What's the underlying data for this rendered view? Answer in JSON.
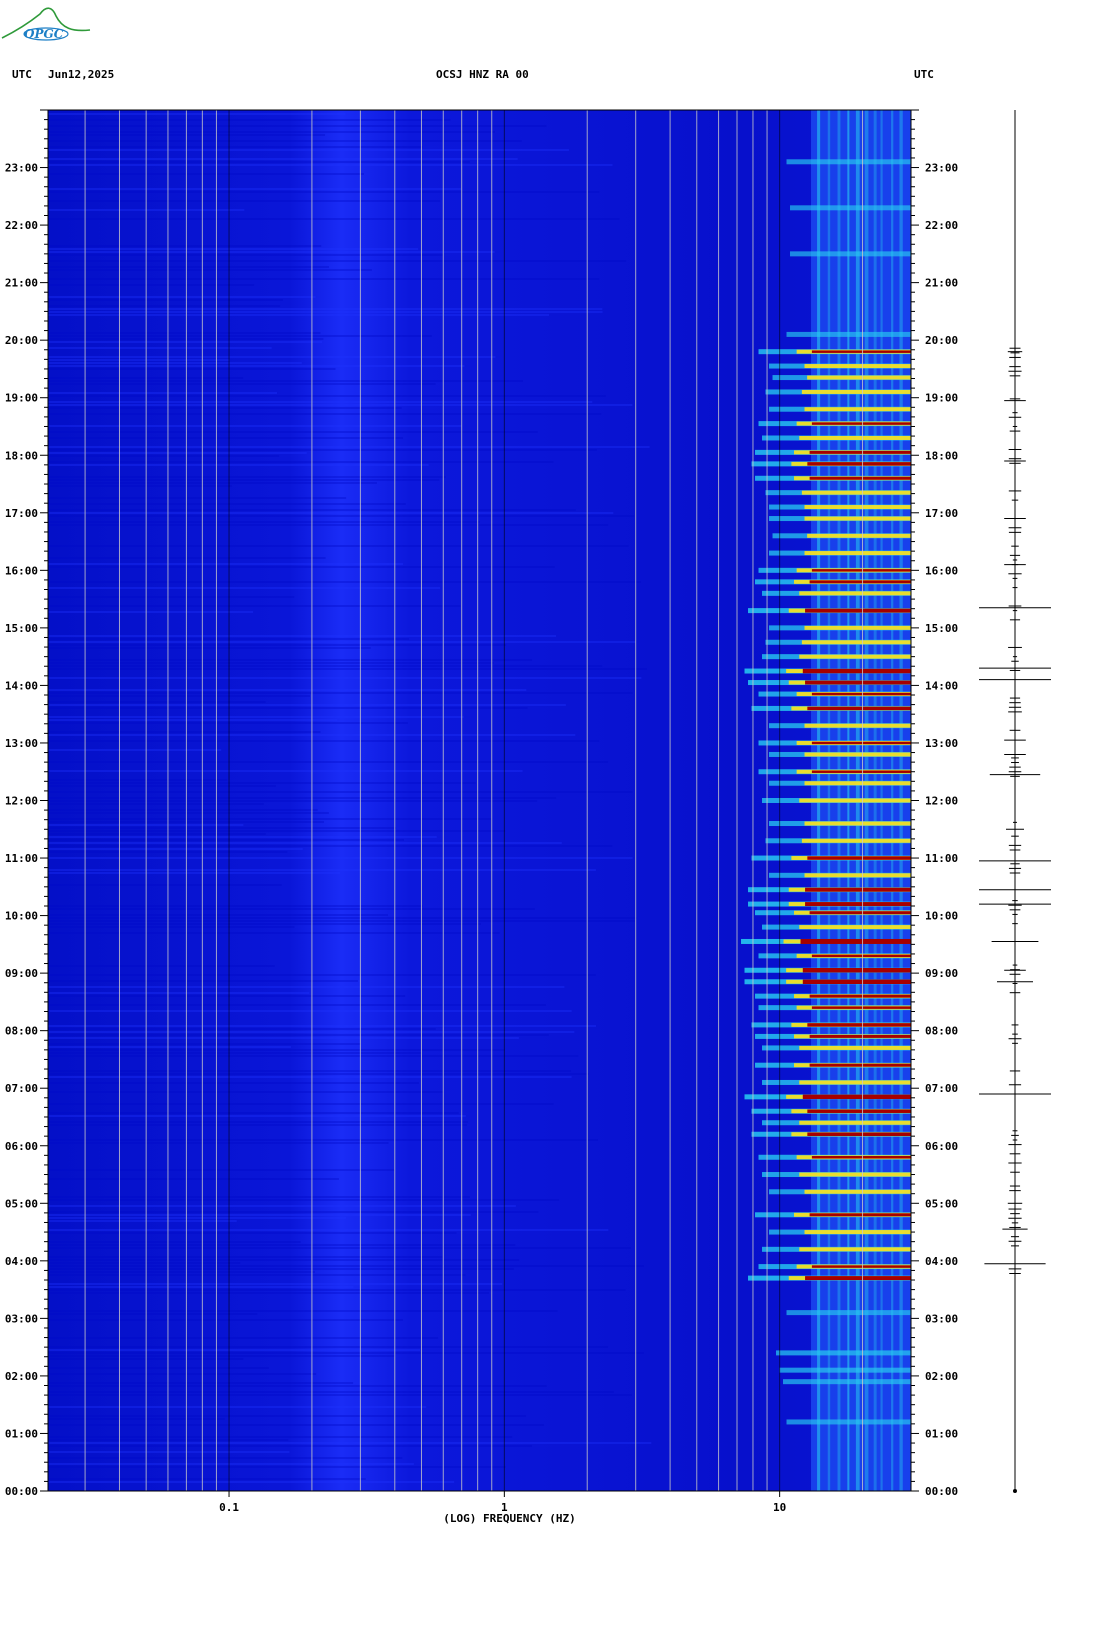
{
  "header": {
    "left_utc": "UTC",
    "date": "Jun12,2025",
    "station": "OCSJ HNZ RA 00",
    "right_utc": "UTC"
  },
  "logo": {
    "text": "OPGC"
  },
  "colors": {
    "background": "#0a12e0",
    "band_dark": "#0008c8",
    "band_light": "#1f35ff",
    "gridline": "#c9c9c9",
    "hot_yellow": "#ffe21a",
    "hot_red": "#a60000",
    "cyan": "#27c8f0"
  },
  "chart_data": {
    "type": "heatmap",
    "title": "OCSJ HNZ RA 00",
    "xlabel": "(LOG) FREQUENCY (HZ)",
    "ylabel": "UTC",
    "xscale": "log",
    "xlim": [
      0.022,
      30
    ],
    "x_ticks": [
      {
        "value": 0.1,
        "label": "0.1"
      },
      {
        "value": 1,
        "label": "1"
      },
      {
        "value": 10,
        "label": "10"
      }
    ],
    "vertical_gridlines_hz": [
      0.03,
      0.04,
      0.05,
      0.06,
      0.07,
      0.08,
      0.09,
      0.2,
      0.3,
      0.4,
      0.5,
      0.6,
      0.7,
      0.8,
      0.9,
      2,
      3,
      4,
      5,
      6,
      7,
      8,
      9,
      20,
      30
    ],
    "ylim_hours": [
      0,
      24
    ],
    "y_ticks": [
      "00:00",
      "01:00",
      "02:00",
      "03:00",
      "04:00",
      "05:00",
      "06:00",
      "07:00",
      "08:00",
      "09:00",
      "10:00",
      "11:00",
      "12:00",
      "13:00",
      "14:00",
      "15:00",
      "16:00",
      "17:00",
      "18:00",
      "19:00",
      "20:00",
      "21:00",
      "22:00",
      "23:00"
    ],
    "y_tick_values": [
      0,
      1,
      2,
      3,
      4,
      5,
      6,
      7,
      8,
      9,
      10,
      11,
      12,
      13,
      14,
      15,
      16,
      17,
      18,
      19,
      20,
      21,
      22,
      23
    ],
    "high_energy_band_hz": [
      13,
      30
    ],
    "energy_rows": [
      {
        "time": 1.2,
        "intensity": 0.35
      },
      {
        "time": 1.9,
        "intensity": 0.4
      },
      {
        "time": 2.1,
        "intensity": 0.45
      },
      {
        "time": 2.4,
        "intensity": 0.5
      },
      {
        "time": 3.1,
        "intensity": 0.35
      },
      {
        "time": 3.7,
        "intensity": 0.9
      },
      {
        "time": 3.9,
        "intensity": 0.75
      },
      {
        "time": 4.2,
        "intensity": 0.7
      },
      {
        "time": 4.5,
        "intensity": 0.6
      },
      {
        "time": 4.8,
        "intensity": 0.8
      },
      {
        "time": 5.2,
        "intensity": 0.6
      },
      {
        "time": 5.5,
        "intensity": 0.7
      },
      {
        "time": 5.8,
        "intensity": 0.75
      },
      {
        "time": 6.2,
        "intensity": 0.85
      },
      {
        "time": 6.4,
        "intensity": 0.7
      },
      {
        "time": 6.6,
        "intensity": 0.85
      },
      {
        "time": 6.85,
        "intensity": 0.95
      },
      {
        "time": 7.1,
        "intensity": 0.7
      },
      {
        "time": 7.4,
        "intensity": 0.8
      },
      {
        "time": 7.7,
        "intensity": 0.7
      },
      {
        "time": 7.9,
        "intensity": 0.8
      },
      {
        "time": 8.1,
        "intensity": 0.85
      },
      {
        "time": 8.4,
        "intensity": 0.75
      },
      {
        "time": 8.6,
        "intensity": 0.8
      },
      {
        "time": 8.85,
        "intensity": 0.95
      },
      {
        "time": 9.05,
        "intensity": 0.95
      },
      {
        "time": 9.3,
        "intensity": 0.75
      },
      {
        "time": 9.55,
        "intensity": 1.0
      },
      {
        "time": 9.8,
        "intensity": 0.7
      },
      {
        "time": 10.05,
        "intensity": 0.8
      },
      {
        "time": 10.2,
        "intensity": 0.9
      },
      {
        "time": 10.45,
        "intensity": 0.9
      },
      {
        "time": 10.7,
        "intensity": 0.6
      },
      {
        "time": 11.0,
        "intensity": 0.85
      },
      {
        "time": 11.3,
        "intensity": 0.65
      },
      {
        "time": 11.6,
        "intensity": 0.6
      },
      {
        "time": 12.0,
        "intensity": 0.7
      },
      {
        "time": 12.3,
        "intensity": 0.6
      },
      {
        "time": 12.5,
        "intensity": 0.75
      },
      {
        "time": 12.8,
        "intensity": 0.6
      },
      {
        "time": 13.0,
        "intensity": 0.75
      },
      {
        "time": 13.3,
        "intensity": 0.6
      },
      {
        "time": 13.6,
        "intensity": 0.85
      },
      {
        "time": 13.85,
        "intensity": 0.75
      },
      {
        "time": 14.05,
        "intensity": 0.9
      },
      {
        "time": 14.25,
        "intensity": 0.95
      },
      {
        "time": 14.5,
        "intensity": 0.7
      },
      {
        "time": 14.75,
        "intensity": 0.65
      },
      {
        "time": 15.0,
        "intensity": 0.6
      },
      {
        "time": 15.3,
        "intensity": 0.9
      },
      {
        "time": 15.6,
        "intensity": 0.7
      },
      {
        "time": 15.8,
        "intensity": 0.8
      },
      {
        "time": 16.0,
        "intensity": 0.75
      },
      {
        "time": 16.3,
        "intensity": 0.6
      },
      {
        "time": 16.6,
        "intensity": 0.55
      },
      {
        "time": 16.9,
        "intensity": 0.6
      },
      {
        "time": 17.1,
        "intensity": 0.6
      },
      {
        "time": 17.35,
        "intensity": 0.65
      },
      {
        "time": 17.6,
        "intensity": 0.8
      },
      {
        "time": 17.85,
        "intensity": 0.85
      },
      {
        "time": 18.05,
        "intensity": 0.8
      },
      {
        "time": 18.3,
        "intensity": 0.7
      },
      {
        "time": 18.55,
        "intensity": 0.75
      },
      {
        "time": 18.8,
        "intensity": 0.6
      },
      {
        "time": 19.1,
        "intensity": 0.65
      },
      {
        "time": 19.35,
        "intensity": 0.55
      },
      {
        "time": 19.55,
        "intensity": 0.6
      },
      {
        "time": 19.8,
        "intensity": 0.75
      },
      {
        "time": 20.1,
        "intensity": 0.35
      },
      {
        "time": 21.5,
        "intensity": 0.3
      },
      {
        "time": 22.3,
        "intensity": 0.3
      },
      {
        "time": 23.1,
        "intensity": 0.35
      }
    ],
    "waveform_spikes": [
      {
        "time": 3.95,
        "amplitude": 0.85
      },
      {
        "time": 4.55,
        "amplitude": 0.35
      },
      {
        "time": 5.0,
        "amplitude": 0.2
      },
      {
        "time": 6.9,
        "amplitude": 1.0
      },
      {
        "time": 8.85,
        "amplitude": 0.5
      },
      {
        "time": 9.05,
        "amplitude": 0.3
      },
      {
        "time": 9.55,
        "amplitude": 0.65
      },
      {
        "time": 10.2,
        "amplitude": 1.0
      },
      {
        "time": 10.45,
        "amplitude": 1.0
      },
      {
        "time": 10.95,
        "amplitude": 1.0
      },
      {
        "time": 11.5,
        "amplitude": 0.25
      },
      {
        "time": 12.45,
        "amplitude": 0.7
      },
      {
        "time": 12.8,
        "amplitude": 0.3
      },
      {
        "time": 13.05,
        "amplitude": 0.3
      },
      {
        "time": 14.1,
        "amplitude": 1.0
      },
      {
        "time": 14.3,
        "amplitude": 1.0
      },
      {
        "time": 15.35,
        "amplitude": 1.0
      },
      {
        "time": 16.1,
        "amplitude": 0.3
      },
      {
        "time": 16.9,
        "amplitude": 0.3
      },
      {
        "time": 17.9,
        "amplitude": 0.3
      },
      {
        "time": 18.95,
        "amplitude": 0.3
      },
      {
        "time": 19.8,
        "amplitude": 0.2
      }
    ],
    "grid": true,
    "legend": "none"
  }
}
